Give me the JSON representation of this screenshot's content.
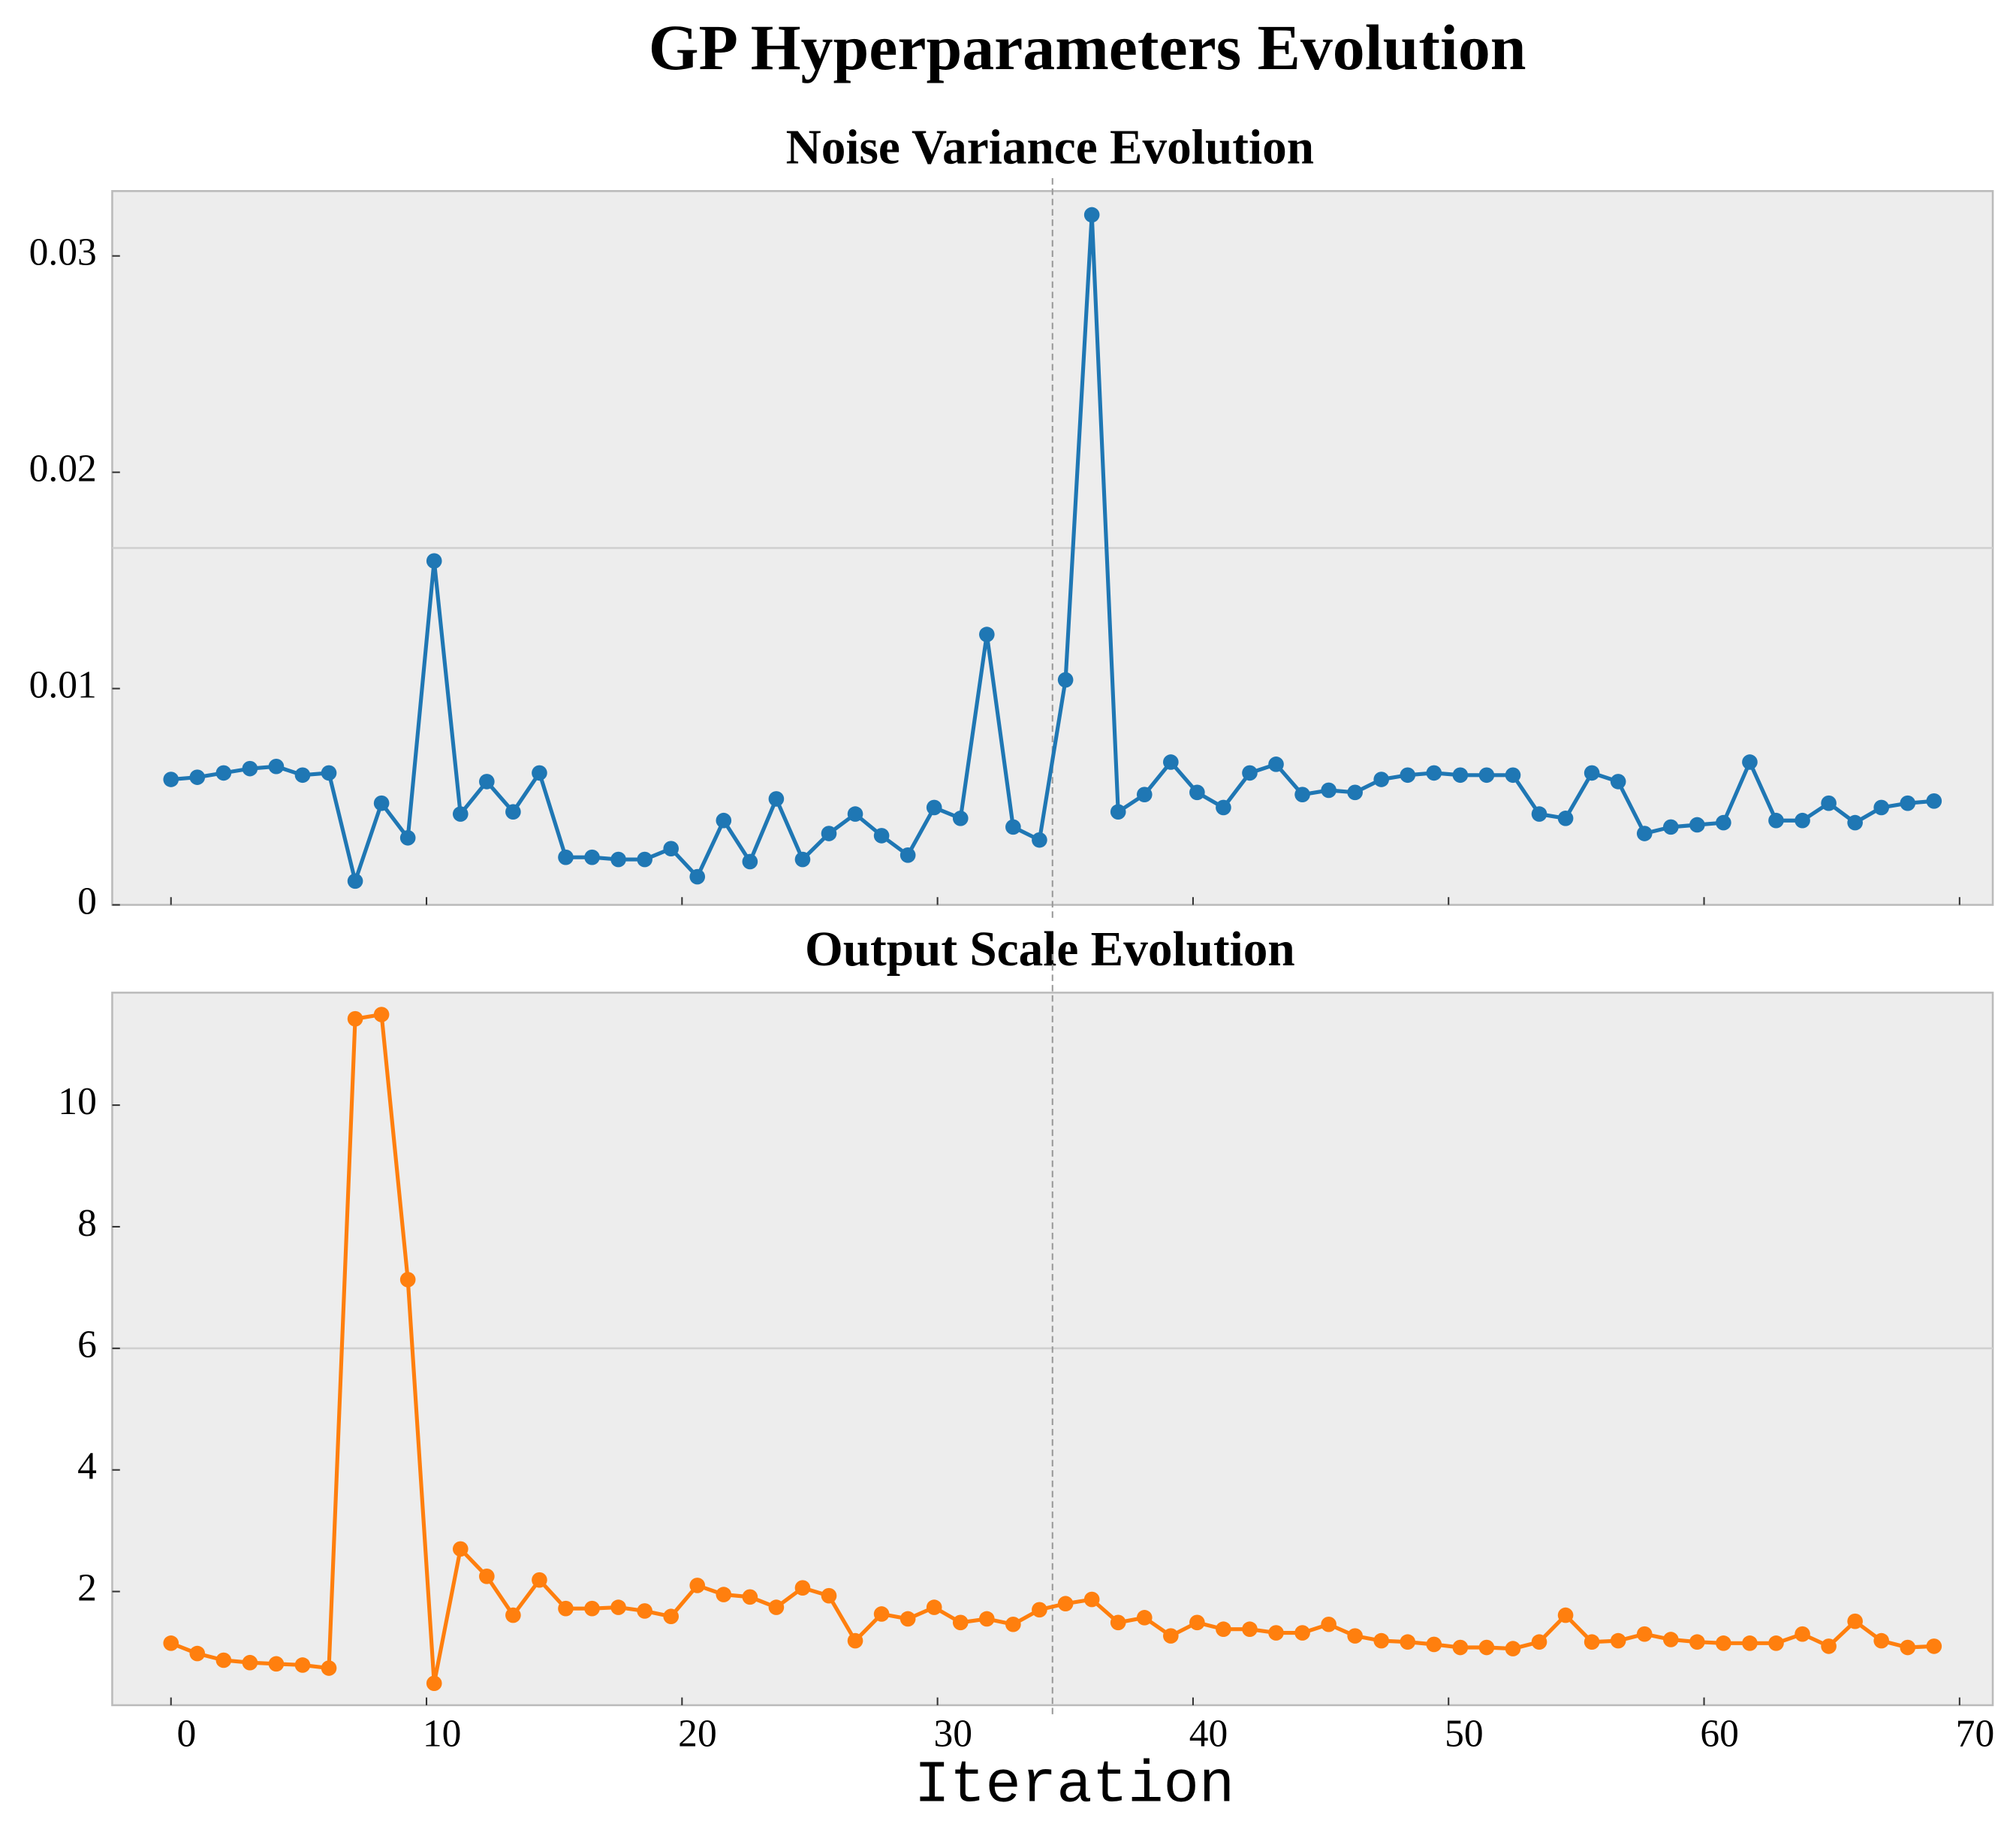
{
  "title": "GP Hyperparameters Evolution",
  "chart_data": [
    {
      "type": "line",
      "title": "Noise Variance Evolution",
      "x": [
        0,
        1.03,
        2.06,
        3.09,
        4.12,
        5.15,
        6.18,
        7.21,
        8.24,
        9.27,
        10.3,
        11.33,
        12.36,
        13.39,
        14.42,
        15.45,
        16.48,
        17.51,
        18.54,
        19.57,
        20.6,
        21.63,
        22.66,
        23.69,
        24.72,
        25.75,
        26.78,
        27.81,
        28.84,
        29.87,
        30.9,
        31.93,
        32.96,
        33.99,
        35.01,
        36.04,
        37.07,
        38.1,
        39.13,
        40.16,
        41.19,
        42.22,
        43.25,
        44.28,
        45.31,
        46.34,
        47.37,
        48.4,
        49.43,
        50.46,
        51.49,
        52.52,
        53.55,
        54.58,
        55.61,
        56.64,
        57.67,
        58.7,
        59.73,
        60.76,
        61.79,
        62.82,
        63.85,
        64.88,
        65.91,
        66.94,
        67.97,
        69
      ],
      "series": [
        {
          "color": "#1f77b4",
          "values": [
            0.0058,
            0.0059,
            0.0061,
            0.0063,
            0.0064,
            0.006,
            0.0061,
            0.0011,
            0.0047,
            0.0031,
            0.0159,
            0.0042,
            0.0057,
            0.0043,
            0.0061,
            0.0022,
            0.0022,
            0.0021,
            0.0021,
            0.0026,
            0.0013,
            0.0039,
            0.002,
            0.0049,
            0.0021,
            0.0033,
            0.0042,
            0.0032,
            0.0023,
            0.0045,
            0.004,
            0.0125,
            0.0036,
            0.003,
            0.0104,
            0.0319,
            0.0043,
            0.0051,
            0.0066,
            0.0052,
            0.0045,
            0.0061,
            0.0065,
            0.0051,
            0.0053,
            0.0052,
            0.0058,
            0.006,
            0.0061,
            0.006,
            0.006,
            0.006,
            0.0042,
            0.004,
            0.0061,
            0.0057,
            0.0033,
            0.0036,
            0.0037,
            0.0038,
            0.0066,
            0.0039,
            0.0039,
            0.0047,
            0.0038,
            0.0045,
            0.0047,
            0.0048
          ]
        }
      ],
      "xlim": [
        -2.3,
        71.3
      ],
      "xticks": [
        0,
        10,
        20,
        30,
        40,
        50,
        60,
        70
      ],
      "ylim": [
        0,
        0.033
      ],
      "yticks": [
        0,
        0.01,
        0.02,
        0.03
      ],
      "vline": 34.5,
      "hline": 0.0165
    },
    {
      "type": "line",
      "title": "Output Scale Evolution",
      "xlabel": "Iteration",
      "x": [
        0,
        1.03,
        2.06,
        3.09,
        4.12,
        5.15,
        6.18,
        7.21,
        8.24,
        9.27,
        10.3,
        11.33,
        12.36,
        13.39,
        14.42,
        15.45,
        16.48,
        17.51,
        18.54,
        19.57,
        20.6,
        21.63,
        22.66,
        23.69,
        24.72,
        25.75,
        26.78,
        27.81,
        28.84,
        29.87,
        30.9,
        31.93,
        32.96,
        33.99,
        35.01,
        36.04,
        37.07,
        38.1,
        39.13,
        40.16,
        41.19,
        42.22,
        43.25,
        44.28,
        45.31,
        46.34,
        47.37,
        48.4,
        49.43,
        50.46,
        51.49,
        52.52,
        53.55,
        54.58,
        55.61,
        56.64,
        57.67,
        58.7,
        59.73,
        60.76,
        61.79,
        62.82,
        63.85,
        64.88,
        65.91,
        66.94,
        67.97,
        69
      ],
      "series": [
        {
          "color": "#ff7f0e",
          "values": [
            1.15,
            0.98,
            0.87,
            0.83,
            0.81,
            0.79,
            0.74,
            11.42,
            11.49,
            7.13,
            0.49,
            2.7,
            2.25,
            1.61,
            2.19,
            1.72,
            1.72,
            1.74,
            1.68,
            1.59,
            2.1,
            1.95,
            1.91,
            1.74,
            2.06,
            1.93,
            1.19,
            1.63,
            1.55,
            1.74,
            1.49,
            1.55,
            1.46,
            1.7,
            1.8,
            1.87,
            1.49,
            1.57,
            1.27,
            1.49,
            1.38,
            1.38,
            1.32,
            1.32,
            1.46,
            1.27,
            1.19,
            1.17,
            1.13,
            1.08,
            1.08,
            1.06,
            1.17,
            1.61,
            1.17,
            1.19,
            1.3,
            1.21,
            1.17,
            1.15,
            1.15,
            1.15,
            1.3,
            1.1,
            1.51,
            1.19,
            1.08,
            1.1
          ]
        }
      ],
      "xlim": [
        -2.3,
        71.3
      ],
      "xticks": [
        0,
        10,
        20,
        30,
        40,
        50,
        60,
        70
      ],
      "ylim": [
        0.13,
        11.85
      ],
      "yticks": [
        2,
        4,
        6,
        8,
        10
      ],
      "vline": 34.5,
      "hline": 6
    }
  ]
}
